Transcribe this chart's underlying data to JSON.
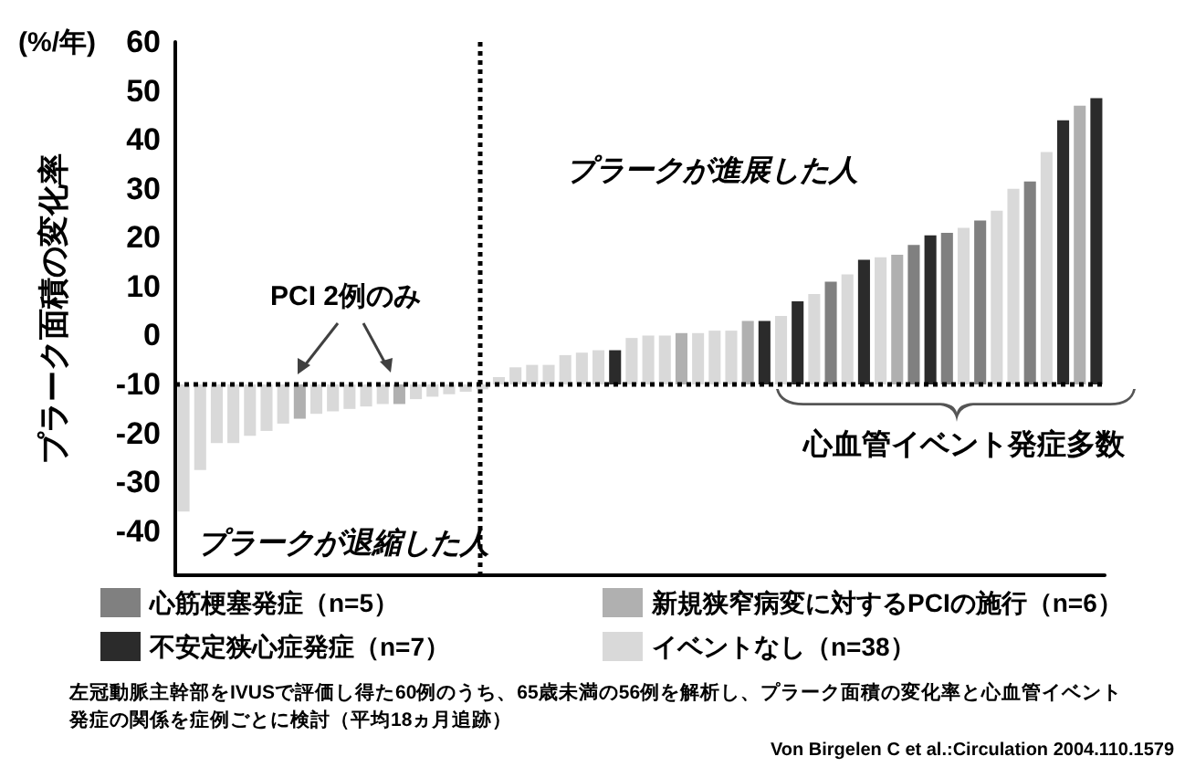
{
  "chart_data": {
    "type": "bar",
    "ylabel": "プラーク面積の変化率",
    "categories": [
      null,
      null,
      null,
      null,
      null,
      null,
      null,
      null,
      null,
      null,
      null,
      null,
      null,
      null,
      null,
      null,
      null,
      null,
      null,
      null,
      null,
      null,
      null,
      null,
      null,
      null,
      null,
      null,
      null,
      null,
      null,
      null,
      null,
      null,
      null,
      null,
      null,
      null,
      null,
      null,
      null,
      null,
      null,
      null,
      null,
      null,
      null,
      null,
      null,
      null,
      null,
      null,
      null,
      null,
      null,
      null
    ],
    "series": [
      {
        "name": "心筋梗塞発症（n=5）",
        "color": "#808080",
        "base": [
          null,
          null,
          null,
          null,
          null,
          null,
          null,
          null,
          null,
          null,
          null,
          null,
          null,
          null,
          null,
          null,
          null,
          null,
          null,
          null,
          null,
          null,
          null,
          null,
          null,
          null,
          null,
          null,
          null,
          null,
          null,
          null,
          null,
          null,
          null,
          null,
          null,
          null,
          null,
          -10,
          null,
          null,
          null,
          null,
          -10,
          null,
          -10,
          null,
          -10,
          null,
          null,
          -10,
          null,
          null,
          null,
          null
        ],
        "values": [
          null,
          null,
          null,
          null,
          null,
          null,
          null,
          null,
          null,
          null,
          null,
          null,
          null,
          null,
          null,
          null,
          null,
          null,
          null,
          null,
          null,
          null,
          null,
          null,
          null,
          null,
          null,
          null,
          null,
          null,
          null,
          null,
          null,
          null,
          null,
          null,
          null,
          null,
          null,
          21,
          null,
          null,
          null,
          null,
          28.5,
          null,
          31,
          null,
          33.5,
          null,
          null,
          41.5,
          null,
          null,
          null,
          null
        ]
      },
      {
        "name": "新規狭窄病変に対するPCIの施行（n=6）",
        "color": "#b0b0b0",
        "base": [
          null,
          null,
          null,
          null,
          null,
          null,
          null,
          -10,
          null,
          null,
          null,
          null,
          null,
          -10,
          null,
          null,
          null,
          null,
          null,
          null,
          null,
          null,
          null,
          null,
          null,
          null,
          null,
          null,
          null,
          null,
          -10,
          null,
          null,
          null,
          -10,
          null,
          null,
          null,
          null,
          null,
          null,
          null,
          null,
          -10,
          null,
          null,
          null,
          null,
          null,
          null,
          null,
          null,
          null,
          null,
          -10,
          null
        ],
        "values": [
          null,
          null,
          null,
          null,
          null,
          null,
          null,
          -7,
          null,
          null,
          null,
          null,
          null,
          -4,
          null,
          null,
          null,
          null,
          null,
          null,
          null,
          null,
          null,
          null,
          null,
          null,
          null,
          null,
          null,
          null,
          10.5,
          null,
          null,
          null,
          13,
          null,
          null,
          null,
          null,
          null,
          null,
          null,
          null,
          26.5,
          null,
          null,
          null,
          null,
          null,
          null,
          null,
          null,
          null,
          null,
          57,
          null
        ]
      },
      {
        "name": "不安定狭心症発症（n=7）",
        "color": "#2b2b2b",
        "base": [
          null,
          null,
          null,
          null,
          null,
          null,
          null,
          null,
          null,
          null,
          null,
          null,
          null,
          null,
          null,
          null,
          null,
          null,
          null,
          null,
          null,
          null,
          null,
          null,
          null,
          null,
          -10,
          null,
          null,
          null,
          null,
          null,
          null,
          null,
          null,
          -10,
          null,
          -10,
          null,
          null,
          null,
          -10,
          null,
          null,
          null,
          -10,
          null,
          null,
          null,
          null,
          null,
          null,
          null,
          -10,
          null,
          -10
        ],
        "values": [
          null,
          null,
          null,
          null,
          null,
          null,
          null,
          null,
          null,
          null,
          null,
          null,
          null,
          null,
          null,
          null,
          null,
          null,
          null,
          null,
          null,
          null,
          null,
          null,
          null,
          null,
          7,
          null,
          null,
          null,
          null,
          null,
          null,
          null,
          null,
          13,
          null,
          17,
          null,
          null,
          null,
          25.5,
          null,
          null,
          null,
          30.5,
          null,
          null,
          null,
          null,
          null,
          null,
          null,
          54,
          null,
          58.5
        ]
      },
      {
        "name": "イベントなし（n=38）",
        "color": "#d9d9d9",
        "base": [
          -10,
          -10,
          -10,
          -10,
          -10,
          -10,
          -10,
          null,
          -10,
          -10,
          -10,
          -10,
          -10,
          null,
          -10,
          -10,
          -10,
          -10,
          -10,
          -10,
          -10,
          -10,
          -10,
          -10,
          -10,
          -10,
          null,
          -10,
          -10,
          -10,
          null,
          -10,
          -10,
          -10,
          null,
          null,
          -10,
          null,
          -10,
          null,
          -10,
          null,
          -10,
          null,
          null,
          null,
          null,
          -10,
          null,
          -10,
          -10,
          null,
          -10,
          null,
          null,
          null
        ],
        "values": [
          -26,
          -17.5,
          -12,
          -12,
          -10.5,
          -9.5,
          -8,
          null,
          -6,
          -5.5,
          -5,
          -4.5,
          -4,
          null,
          -3,
          -2.5,
          -2,
          -1.5,
          -1,
          1.5,
          3.5,
          4,
          4,
          6,
          6.5,
          7,
          null,
          9.5,
          10,
          10,
          null,
          10.5,
          11,
          11,
          null,
          null,
          14,
          null,
          18.5,
          null,
          22.5,
          null,
          26,
          null,
          null,
          null,
          null,
          32,
          null,
          35.5,
          40,
          null,
          47.5,
          null,
          null,
          null
        ]
      }
    ],
    "ylim": [
      -49,
      60
    ],
    "yticks": [
      -40,
      -30,
      -20,
      -10,
      0,
      10,
      20,
      30,
      40,
      50,
      60
    ],
    "tick_labels": "y",
    "grid": false,
    "legend": "bottom",
    "ref_lines": [
      {
        "axis": "y",
        "value": -10,
        "color": "#000000",
        "line_style": "dotted"
      }
    ],
    "annotations": [
      "(%/年)",
      "PCI 2例のみ",
      "プラークが進展した人",
      "プラークが退縮した人",
      "心血管イベント発症多数",
      "左冠動脈主幹部をIVUSで評価し得た60例のうち、65歳未満の56例を解析し、プラーク面積の変化率と心血管イベント発症の関係を症例ごとに検討（平均18ヵ月追跡）",
      "Von Birgelen C et al.:Circulation 2004.110.1579"
    ]
  }
}
